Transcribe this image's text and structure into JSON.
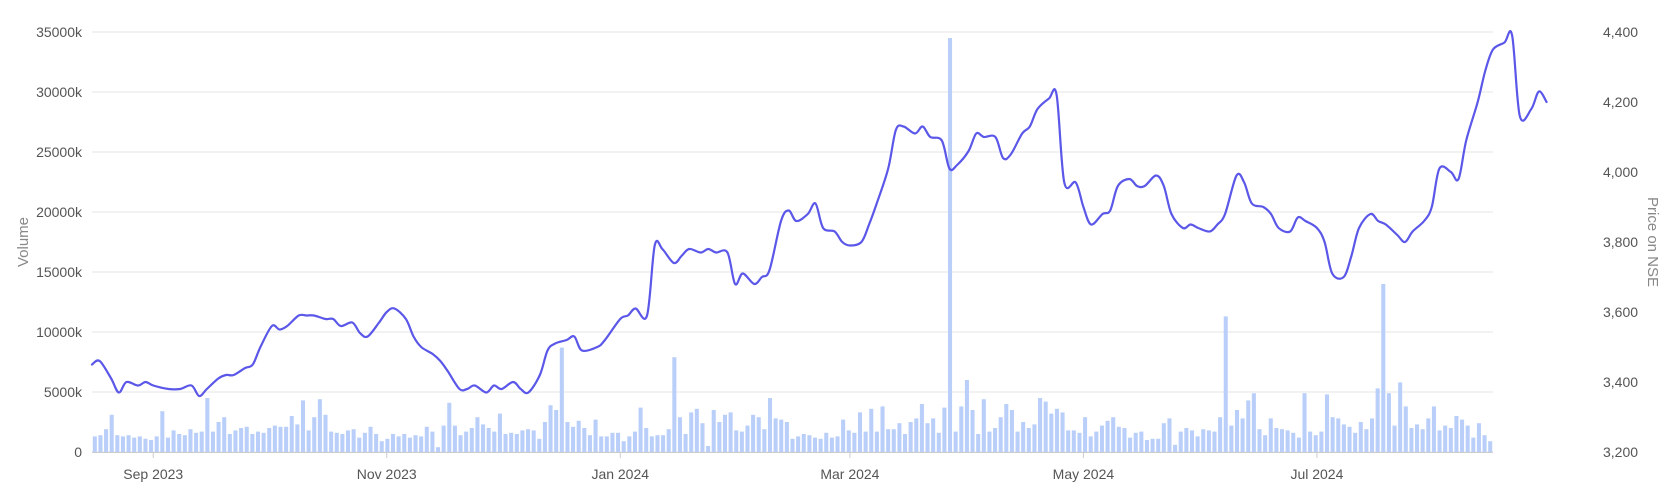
{
  "chart_data": {
    "type": "bar+line",
    "title": "",
    "ylabel_left": "Volume",
    "ylabel_right": "Price on NSE",
    "x_ticks": [
      "Sep 2023",
      "Nov 2023",
      "Jan 2024",
      "Mar 2024",
      "May 2024",
      "Jul 2024"
    ],
    "x_range": [
      "2023-08-16",
      "2024-08-16"
    ],
    "y_left": {
      "range": [
        0,
        35000
      ],
      "unit": "k",
      "ticks": [
        "0",
        "5000k",
        "10000k",
        "15000k",
        "20000k",
        "25000k",
        "30000k",
        "35000k"
      ]
    },
    "y_right": {
      "range": [
        3200,
        4400
      ],
      "ticks": [
        "3,200",
        "3,400",
        "3,600",
        "3,800",
        "4,000",
        "4,200",
        "4,400"
      ]
    },
    "grid": true,
    "colors": {
      "price_line": "#5b57e8",
      "volume_bar": "#b9cff9",
      "grid": "#e6e6e6"
    },
    "series": [
      {
        "name": "Price on NSE",
        "kind": "line",
        "axis": "right",
        "points": [
          [
            "2023-08-16",
            3450
          ],
          [
            "2023-08-18",
            3460
          ],
          [
            "2023-08-21",
            3410
          ],
          [
            "2023-08-23",
            3370
          ],
          [
            "2023-08-25",
            3400
          ],
          [
            "2023-08-28",
            3390
          ],
          [
            "2023-08-30",
            3400
          ],
          [
            "2023-09-01",
            3390
          ],
          [
            "2023-09-05",
            3380
          ],
          [
            "2023-09-08",
            3380
          ],
          [
            "2023-09-11",
            3390
          ],
          [
            "2023-09-13",
            3360
          ],
          [
            "2023-09-15",
            3380
          ],
          [
            "2023-09-18",
            3410
          ],
          [
            "2023-09-20",
            3420
          ],
          [
            "2023-09-22",
            3420
          ],
          [
            "2023-09-25",
            3440
          ],
          [
            "2023-09-27",
            3450
          ],
          [
            "2023-09-29",
            3500
          ],
          [
            "2023-10-02",
            3560
          ],
          [
            "2023-10-04",
            3550
          ],
          [
            "2023-10-06",
            3560
          ],
          [
            "2023-10-09",
            3590
          ],
          [
            "2023-10-11",
            3590
          ],
          [
            "2023-10-13",
            3590
          ],
          [
            "2023-10-16",
            3580
          ],
          [
            "2023-10-18",
            3580
          ],
          [
            "2023-10-20",
            3560
          ],
          [
            "2023-10-23",
            3570
          ],
          [
            "2023-10-25",
            3540
          ],
          [
            "2023-10-27",
            3530
          ],
          [
            "2023-10-30",
            3570
          ],
          [
            "2023-11-01",
            3600
          ],
          [
            "2023-11-03",
            3610
          ],
          [
            "2023-11-06",
            3580
          ],
          [
            "2023-11-08",
            3530
          ],
          [
            "2023-11-10",
            3500
          ],
          [
            "2023-11-13",
            3480
          ],
          [
            "2023-11-15",
            3460
          ],
          [
            "2023-11-17",
            3430
          ],
          [
            "2023-11-20",
            3380
          ],
          [
            "2023-11-22",
            3380
          ],
          [
            "2023-11-24",
            3390
          ],
          [
            "2023-11-27",
            3370
          ],
          [
            "2023-11-29",
            3390
          ],
          [
            "2023-12-01",
            3380
          ],
          [
            "2023-12-04",
            3400
          ],
          [
            "2023-12-06",
            3380
          ],
          [
            "2023-12-08",
            3370
          ],
          [
            "2023-12-11",
            3420
          ],
          [
            "2023-12-13",
            3490
          ],
          [
            "2023-12-15",
            3510
          ],
          [
            "2023-12-18",
            3520
          ],
          [
            "2023-12-20",
            3530
          ],
          [
            "2023-12-22",
            3490
          ],
          [
            "2023-12-26",
            3500
          ],
          [
            "2023-12-28",
            3520
          ],
          [
            "2024-01-01",
            3580
          ],
          [
            "2024-01-03",
            3590
          ],
          [
            "2024-01-05",
            3610
          ],
          [
            "2024-01-08",
            3590
          ],
          [
            "2024-01-10",
            3790
          ],
          [
            "2024-01-12",
            3780
          ],
          [
            "2024-01-15",
            3740
          ],
          [
            "2024-01-17",
            3760
          ],
          [
            "2024-01-19",
            3780
          ],
          [
            "2024-01-22",
            3770
          ],
          [
            "2024-01-24",
            3780
          ],
          [
            "2024-01-26",
            3770
          ],
          [
            "2024-01-29",
            3770
          ],
          [
            "2024-01-31",
            3680
          ],
          [
            "2024-02-02",
            3710
          ],
          [
            "2024-02-05",
            3680
          ],
          [
            "2024-02-07",
            3700
          ],
          [
            "2024-02-09",
            3720
          ],
          [
            "2024-02-12",
            3860
          ],
          [
            "2024-02-14",
            3890
          ],
          [
            "2024-02-16",
            3860
          ],
          [
            "2024-02-19",
            3880
          ],
          [
            "2024-02-21",
            3910
          ],
          [
            "2024-02-23",
            3840
          ],
          [
            "2024-02-26",
            3830
          ],
          [
            "2024-02-28",
            3800
          ],
          [
            "2024-03-01",
            3790
          ],
          [
            "2024-03-04",
            3800
          ],
          [
            "2024-03-06",
            3850
          ],
          [
            "2024-03-08",
            3910
          ],
          [
            "2024-03-11",
            4010
          ],
          [
            "2024-03-13",
            4120
          ],
          [
            "2024-03-15",
            4130
          ],
          [
            "2024-03-18",
            4110
          ],
          [
            "2024-03-20",
            4130
          ],
          [
            "2024-03-22",
            4100
          ],
          [
            "2024-03-25",
            4090
          ],
          [
            "2024-03-27",
            4010
          ],
          [
            "2024-03-29",
            4020
          ],
          [
            "2024-04-01",
            4060
          ],
          [
            "2024-04-03",
            4110
          ],
          [
            "2024-04-05",
            4100
          ],
          [
            "2024-04-08",
            4100
          ],
          [
            "2024-04-10",
            4040
          ],
          [
            "2024-04-12",
            4050
          ],
          [
            "2024-04-15",
            4110
          ],
          [
            "2024-04-17",
            4130
          ],
          [
            "2024-04-19",
            4180
          ],
          [
            "2024-04-22",
            4210
          ],
          [
            "2024-04-24",
            4220
          ],
          [
            "2024-04-26",
            3970
          ],
          [
            "2024-04-29",
            3970
          ],
          [
            "2024-05-01",
            3900
          ],
          [
            "2024-05-03",
            3850
          ],
          [
            "2024-05-06",
            3880
          ],
          [
            "2024-05-08",
            3890
          ],
          [
            "2024-05-10",
            3960
          ],
          [
            "2024-05-13",
            3980
          ],
          [
            "2024-05-15",
            3960
          ],
          [
            "2024-05-17",
            3960
          ],
          [
            "2024-05-20",
            3990
          ],
          [
            "2024-05-22",
            3960
          ],
          [
            "2024-05-24",
            3880
          ],
          [
            "2024-05-27",
            3840
          ],
          [
            "2024-05-29",
            3850
          ],
          [
            "2024-05-31",
            3840
          ],
          [
            "2024-06-03",
            3830
          ],
          [
            "2024-06-05",
            3850
          ],
          [
            "2024-06-07",
            3880
          ],
          [
            "2024-06-10",
            3990
          ],
          [
            "2024-06-12",
            3970
          ],
          [
            "2024-06-14",
            3910
          ],
          [
            "2024-06-17",
            3900
          ],
          [
            "2024-06-19",
            3880
          ],
          [
            "2024-06-21",
            3840
          ],
          [
            "2024-06-24",
            3830
          ],
          [
            "2024-06-26",
            3870
          ],
          [
            "2024-06-28",
            3860
          ],
          [
            "2024-07-01",
            3840
          ],
          [
            "2024-07-03",
            3800
          ],
          [
            "2024-07-05",
            3710
          ],
          [
            "2024-07-08",
            3700
          ],
          [
            "2024-07-10",
            3760
          ],
          [
            "2024-07-12",
            3840
          ],
          [
            "2024-07-15",
            3880
          ],
          [
            "2024-07-17",
            3860
          ],
          [
            "2024-07-19",
            3850
          ],
          [
            "2024-07-22",
            3820
          ],
          [
            "2024-07-24",
            3800
          ],
          [
            "2024-07-26",
            3830
          ],
          [
            "2024-07-29",
            3860
          ],
          [
            "2024-07-31",
            3900
          ],
          [
            "2024-08-02",
            4010
          ],
          [
            "2024-08-05",
            4000
          ],
          [
            "2024-08-07",
            3980
          ],
          [
            "2024-08-09",
            4090
          ],
          [
            "2024-08-12",
            4200
          ],
          [
            "2024-08-14",
            4290
          ],
          [
            "2024-08-16",
            4350
          ],
          [
            "2024-08-19",
            4370
          ],
          [
            "2024-08-21",
            4390
          ],
          [
            "2024-08-23",
            4160
          ],
          [
            "2024-08-26",
            4180
          ],
          [
            "2024-08-28",
            4230
          ],
          [
            "2024-08-30",
            4200
          ]
        ]
      },
      {
        "name": "Volume",
        "kind": "bar",
        "axis": "left",
        "unit": "k",
        "values": [
          1300,
          1400,
          1900,
          3100,
          1400,
          1300,
          1400,
          1200,
          1300,
          1100,
          1000,
          1300,
          3400,
          1200,
          1800,
          1500,
          1400,
          1900,
          1600,
          1700,
          4500,
          1700,
          2500,
          2900,
          1500,
          1800,
          2000,
          2100,
          1500,
          1700,
          1600,
          2000,
          2200,
          2100,
          2100,
          3000,
          2300,
          4300,
          1800,
          2900,
          4400,
          3100,
          1700,
          1600,
          1500,
          1800,
          1900,
          1200,
          1600,
          2100,
          1500,
          900,
          1100,
          1500,
          1300,
          1500,
          1200,
          1400,
          1300,
          2100,
          1700,
          400,
          2200,
          4100,
          2200,
          1400,
          1700,
          2000,
          2900,
          2300,
          2000,
          1700,
          3200,
          1500,
          1600,
          1500,
          1800,
          1900,
          1800,
          1100,
          2500,
          3900,
          3500,
          8700,
          2500,
          2100,
          2600,
          2000,
          1400,
          2700,
          1300,
          1300,
          1600,
          1600,
          900,
          1300,
          1700,
          3700,
          2000,
          1300,
          1400,
          1400,
          1900,
          7900,
          2900,
          1500,
          3300,
          3600,
          2400,
          500,
          3500,
          2500,
          3100,
          3300,
          1800,
          1700,
          2200,
          3100,
          2900,
          1900,
          4500,
          2800,
          2700,
          2500,
          1100,
          1300,
          1500,
          1400,
          1200,
          1100,
          1600,
          1200,
          1300,
          2700,
          1800,
          1600,
          3300,
          1700,
          3600,
          1700,
          3800,
          1900,
          1900,
          2400,
          1500,
          2500,
          2800,
          4000,
          2400,
          2800,
          1600,
          3700,
          34500,
          1700,
          3800,
          6000,
          3500,
          1500,
          4400,
          1700,
          2000,
          2900,
          4000,
          3500,
          1700,
          2500,
          2000,
          2300,
          4500,
          4200,
          3200,
          3600,
          3300,
          1800,
          1800,
          1600,
          2900,
          1300,
          1700,
          2200,
          2600,
          2900,
          2100,
          2000,
          1200,
          1600,
          1700,
          1000,
          1100,
          1100,
          2400,
          2800,
          600,
          1700,
          2000,
          1800,
          1300,
          1900,
          1800,
          1700,
          2900,
          11300,
          2200,
          3500,
          2800,
          4300,
          4900,
          1900,
          1400,
          2800,
          2000,
          1900,
          1800,
          1600,
          1200,
          4900,
          1700,
          1400,
          1700,
          4800,
          2900,
          2800,
          2300,
          2100,
          1600,
          2500,
          1900,
          2800,
          5300,
          14000,
          4900,
          2200,
          5800,
          3800,
          2000,
          2300,
          1900,
          2800,
          3800,
          1800,
          2200,
          2000,
          3000,
          2700,
          2200,
          1200,
          2400,
          1400,
          900
        ]
      }
    ]
  }
}
